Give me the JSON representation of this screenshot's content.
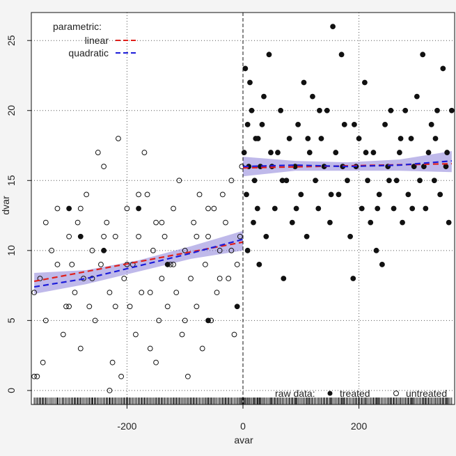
{
  "chart_data": {
    "type": "scatter",
    "xlabel": "avar",
    "ylabel": "dvar",
    "xlim": [
      -365,
      365
    ],
    "ylim": [
      -1,
      27
    ],
    "x_ticks": [
      -200,
      0,
      200
    ],
    "y_ticks": [
      0,
      5,
      10,
      15,
      20,
      25
    ],
    "x_tick_labels": [
      "-200",
      "0",
      "200"
    ],
    "y_tick_labels": [
      "0",
      "5",
      "10",
      "15",
      "20",
      "25"
    ],
    "grid": true,
    "cutoff": 0,
    "legend_parametric": {
      "title": "parametric:",
      "entries": [
        {
          "label": "linear",
          "color": "#e0201b"
        },
        {
          "label": "quadratic",
          "color": "#1c1cd9"
        }
      ]
    },
    "legend_raw": {
      "title": "raw data:",
      "entries": [
        {
          "label": "treated",
          "marker": "filled"
        },
        {
          "label": "untreated",
          "marker": "open"
        }
      ]
    },
    "colors": {
      "linear": "#e0201b",
      "quadratic": "#1c1cd9",
      "ci_band": "#8a7fd8",
      "points": "#111111"
    },
    "series": [
      {
        "name": "untreated",
        "marker": "open",
        "points": [
          [
            -360,
            1
          ],
          [
            -355,
            1
          ],
          [
            -350,
            8
          ],
          [
            -345,
            2
          ],
          [
            -340,
            5
          ],
          [
            -330,
            10
          ],
          [
            -320,
            13
          ],
          [
            -310,
            4
          ],
          [
            -305,
            6
          ],
          [
            -300,
            11
          ],
          [
            -295,
            9
          ],
          [
            -290,
            7
          ],
          [
            -285,
            12
          ],
          [
            -280,
            3
          ],
          [
            -275,
            8
          ],
          [
            -270,
            14
          ],
          [
            -265,
            6
          ],
          [
            -260,
            10
          ],
          [
            -255,
            5
          ],
          [
            -250,
            17
          ],
          [
            -245,
            9
          ],
          [
            -240,
            16
          ],
          [
            -235,
            12
          ],
          [
            -230,
            7
          ],
          [
            -225,
            2
          ],
          [
            -220,
            11
          ],
          [
            -215,
            18
          ],
          [
            -210,
            1
          ],
          [
            -205,
            8
          ],
          [
            -200,
            13
          ],
          [
            -195,
            6
          ],
          [
            -190,
            9
          ],
          [
            -185,
            4
          ],
          [
            -180,
            11
          ],
          [
            -175,
            7
          ],
          [
            -170,
            17
          ],
          [
            -165,
            14
          ],
          [
            -160,
            3
          ],
          [
            -155,
            10
          ],
          [
            -150,
            12
          ],
          [
            -145,
            5
          ],
          [
            -140,
            8
          ],
          [
            -135,
            11
          ],
          [
            -130,
            6
          ],
          [
            -125,
            9
          ],
          [
            -120,
            13
          ],
          [
            -115,
            7
          ],
          [
            -110,
            15
          ],
          [
            -105,
            4
          ],
          [
            -100,
            10
          ],
          [
            -95,
            1
          ],
          [
            -90,
            8
          ],
          [
            -85,
            12
          ],
          [
            -80,
            6
          ],
          [
            -75,
            14
          ],
          [
            -70,
            3
          ],
          [
            -65,
            9
          ],
          [
            -60,
            11
          ],
          [
            -55,
            5
          ],
          [
            -50,
            13
          ],
          [
            -45,
            7
          ],
          [
            -40,
            10
          ],
          [
            -35,
            14
          ],
          [
            -30,
            12
          ],
          [
            -25,
            8
          ],
          [
            -20,
            15
          ],
          [
            -15,
            4
          ],
          [
            -10,
            9
          ],
          [
            -5,
            11
          ],
          [
            -2,
            16
          ],
          [
            -340,
            12
          ],
          [
            -320,
            9
          ],
          [
            -300,
            6
          ],
          [
            -280,
            13
          ],
          [
            -260,
            8
          ],
          [
            -240,
            11
          ],
          [
            -220,
            6
          ],
          [
            -200,
            9
          ],
          [
            -180,
            14
          ],
          [
            -160,
            7
          ],
          [
            -140,
            12
          ],
          [
            -120,
            9
          ],
          [
            -100,
            5
          ],
          [
            -80,
            11
          ],
          [
            -60,
            13
          ],
          [
            -40,
            8
          ],
          [
            -20,
            10
          ],
          [
            -360,
            7
          ],
          [
            -230,
            0
          ],
          [
            -150,
            2
          ]
        ]
      },
      {
        "name": "treated",
        "marker": "filled",
        "points": [
          [
            2,
            17
          ],
          [
            4,
            23
          ],
          [
            6,
            14
          ],
          [
            8,
            19
          ],
          [
            10,
            16
          ],
          [
            12,
            22
          ],
          [
            15,
            20
          ],
          [
            18,
            12
          ],
          [
            20,
            15
          ],
          [
            22,
            18
          ],
          [
            25,
            13
          ],
          [
            28,
            9
          ],
          [
            30,
            16
          ],
          [
            33,
            19
          ],
          [
            36,
            21
          ],
          [
            40,
            11
          ],
          [
            45,
            24
          ],
          [
            50,
            16
          ],
          [
            55,
            13
          ],
          [
            60,
            17
          ],
          [
            65,
            20
          ],
          [
            70,
            8
          ],
          [
            75,
            15
          ],
          [
            80,
            18
          ],
          [
            85,
            12
          ],
          [
            90,
            16
          ],
          [
            95,
            19
          ],
          [
            100,
            14
          ],
          [
            105,
            22
          ],
          [
            110,
            11
          ],
          [
            115,
            17
          ],
          [
            120,
            21
          ],
          [
            125,
            15
          ],
          [
            130,
            13
          ],
          [
            135,
            18
          ],
          [
            140,
            16
          ],
          [
            145,
            20
          ],
          [
            150,
            12
          ],
          [
            155,
            26
          ],
          [
            160,
            17
          ],
          [
            165,
            14
          ],
          [
            170,
            24
          ],
          [
            175,
            19
          ],
          [
            180,
            15
          ],
          [
            185,
            11
          ],
          [
            190,
            8
          ],
          [
            195,
            16
          ],
          [
            200,
            18
          ],
          [
            205,
            13
          ],
          [
            210,
            22
          ],
          [
            215,
            15
          ],
          [
            220,
            12
          ],
          [
            225,
            17
          ],
          [
            230,
            10
          ],
          [
            235,
            14
          ],
          [
            240,
            9
          ],
          [
            245,
            19
          ],
          [
            250,
            16
          ],
          [
            255,
            20
          ],
          [
            260,
            13
          ],
          [
            265,
            15
          ],
          [
            270,
            17
          ],
          [
            275,
            12
          ],
          [
            280,
            20
          ],
          [
            285,
            14
          ],
          [
            290,
            18
          ],
          [
            295,
            16
          ],
          [
            300,
            21
          ],
          [
            305,
            15
          ],
          [
            310,
            24
          ],
          [
            315,
            13
          ],
          [
            320,
            17
          ],
          [
            325,
            19
          ],
          [
            330,
            15
          ],
          [
            335,
            20
          ],
          [
            340,
            14
          ],
          [
            345,
            23
          ],
          [
            350,
            16
          ],
          [
            355,
            12
          ],
          [
            360,
            20
          ],
          [
            8,
            10
          ],
          [
            26,
            18
          ],
          [
            48,
            17
          ],
          [
            68,
            15
          ],
          [
            92,
            13
          ],
          [
            112,
            18
          ],
          [
            132,
            20
          ],
          [
            152,
            14
          ],
          [
            172,
            16
          ],
          [
            192,
            19
          ],
          [
            212,
            17
          ],
          [
            232,
            13
          ],
          [
            252,
            15
          ],
          [
            272,
            18
          ],
          [
            292,
            13
          ],
          [
            312,
            16
          ],
          [
            332,
            18
          ],
          [
            352,
            17
          ],
          [
            -10,
            6
          ],
          [
            -60,
            5
          ],
          [
            -280,
            11
          ],
          [
            -300,
            13
          ],
          [
            -240,
            10
          ],
          [
            -180,
            13
          ],
          [
            -130,
            9
          ]
        ]
      }
    ],
    "fits": [
      {
        "name": "linear",
        "segments": [
          {
            "x": [
              -360,
              0
            ],
            "y": [
              7.8,
              10.6
            ]
          },
          {
            "x": [
              0,
              360
            ],
            "y": [
              15.9,
              16.2
            ]
          }
        ]
      },
      {
        "name": "quadratic",
        "segments": [
          {
            "x": [
              -360,
              -270,
              -180,
              -90,
              0
            ],
            "y": [
              7.4,
              8.0,
              8.9,
              9.8,
              10.8
            ]
          },
          {
            "x": [
              0,
              90,
              180,
              270,
              360
            ],
            "y": [
              16.0,
              16.1,
              16.0,
              16.1,
              16.4
            ]
          }
        ]
      }
    ],
    "ci_bands": [
      {
        "x": [
          -360,
          -270,
          -180,
          -90,
          0
        ],
        "lower": [
          6.9,
          7.6,
          8.5,
          9.4,
          10.0
        ],
        "upper": [
          8.4,
          8.6,
          9.3,
          10.3,
          11.4
        ]
      },
      {
        "x": [
          0,
          90,
          180,
          270,
          360
        ],
        "lower": [
          15.3,
          15.7,
          15.7,
          15.7,
          15.6
        ],
        "upper": [
          16.7,
          16.4,
          16.3,
          16.5,
          17.1
        ]
      }
    ]
  }
}
